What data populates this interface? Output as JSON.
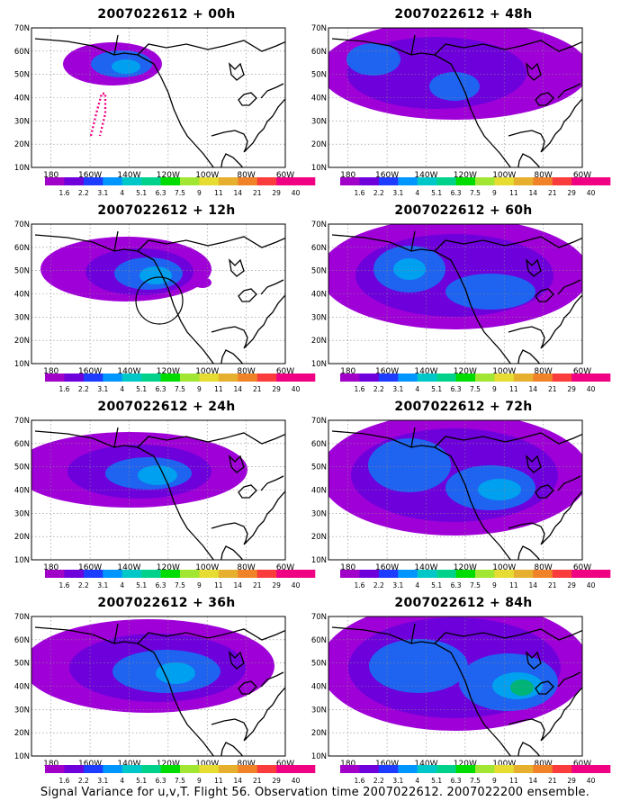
{
  "caption": "Signal Variance for u,v,T. Flight 56. Observation time 2007022612. 2007022200 ensemble.",
  "map_axes": {
    "lat_labels": [
      "70N",
      "60N",
      "50N",
      "40N",
      "30N",
      "20N",
      "10N"
    ],
    "lon_labels": [
      "180",
      "160W",
      "140W",
      "120W",
      "100W",
      "80W",
      "60W"
    ]
  },
  "colorbar": {
    "labels": [
      "1.6",
      "2.2",
      "3.1",
      "4",
      "5.1",
      "6.3",
      "7.5",
      "9",
      "11",
      "14",
      "21",
      "29",
      "40"
    ],
    "colors": [
      "#a000c8",
      "#6e00dc",
      "#1e3cff",
      "#0096ff",
      "#00c8c8",
      "#00d28c",
      "#00dc00",
      "#a0e632",
      "#e6dc32",
      "#e6af2d",
      "#f08228",
      "#fa3c3c",
      "#f00082"
    ]
  },
  "panels": [
    {
      "id": "p00",
      "title": "2007022612 + 00h"
    },
    {
      "id": "p48",
      "title": "2007022612 + 48h"
    },
    {
      "id": "p12",
      "title": "2007022612 + 12h"
    },
    {
      "id": "p60",
      "title": "2007022612 + 60h"
    },
    {
      "id": "p24",
      "title": "2007022612 + 24h"
    },
    {
      "id": "p72",
      "title": "2007022612 + 72h"
    },
    {
      "id": "p36",
      "title": "2007022612 + 36h"
    },
    {
      "id": "p84",
      "title": "2007022612 + 84h"
    }
  ]
}
